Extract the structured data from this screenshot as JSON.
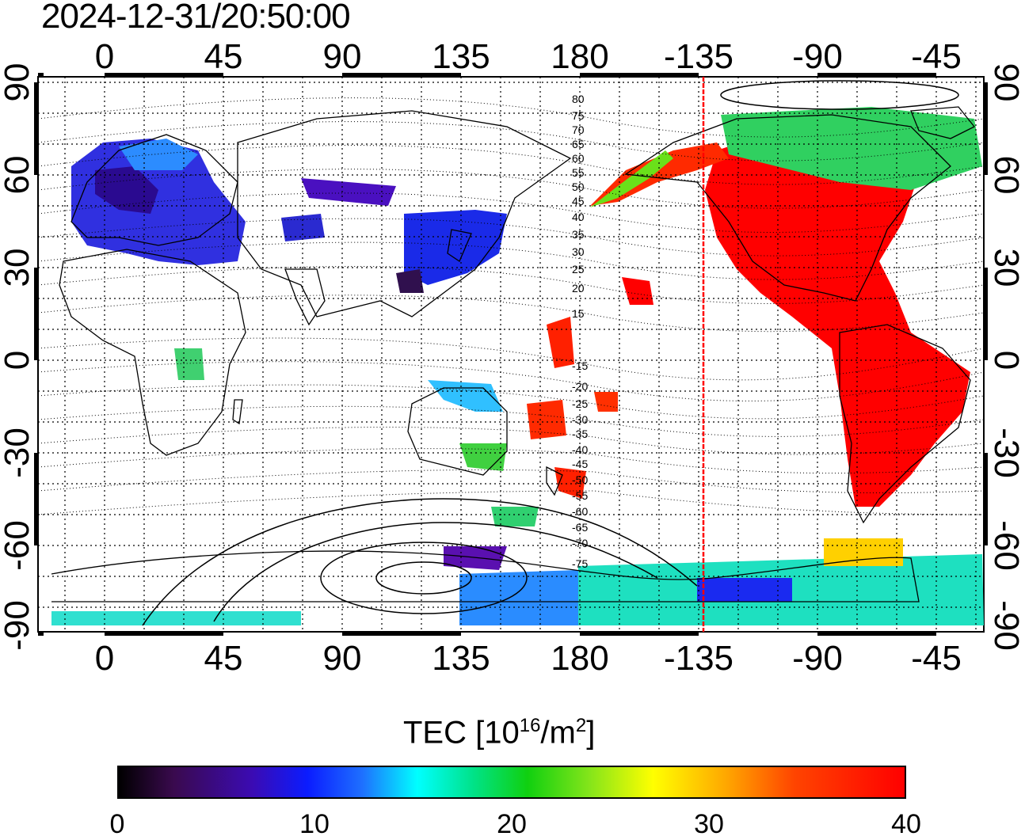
{
  "header": {
    "timestamp": "2024-12-31/20:50:00"
  },
  "map": {
    "top_lon_labels": [
      "0",
      "45",
      "90",
      "135",
      "180",
      "-135",
      "-90",
      "-45"
    ],
    "bottom_lon_labels": [
      "0",
      "45",
      "90",
      "135",
      "180",
      "-135",
      "-90",
      "-45"
    ],
    "left_lat_labels": [
      "90",
      "60",
      "30",
      "0",
      "-30",
      "-60",
      "-90"
    ],
    "right_lat_labels": [
      "90",
      "60",
      "30",
      "0",
      "-30",
      "-60",
      "-90"
    ],
    "mag_lat_labels_north": [
      "80",
      "75",
      "70",
      "65",
      "60",
      "55",
      "50",
      "45",
      "40",
      "35",
      "30",
      "25",
      "20",
      "15"
    ],
    "mag_lat_labels_south": [
      "-15",
      "-20",
      "-25",
      "-30",
      "-35",
      "-40",
      "-45",
      "-50",
      "-55",
      "-60",
      "-65",
      "-70",
      "-75"
    ],
    "terminator_lon": -135,
    "terminator_color": "#ff0000"
  },
  "colorbar": {
    "title_main": "TEC  [10",
    "title_exp1": "16",
    "title_mid": "/m",
    "title_exp2": "2",
    "title_end": "]",
    "ticks": [
      "0",
      "10",
      "20",
      "30",
      "40"
    ],
    "min": 0,
    "max": 40
  }
}
